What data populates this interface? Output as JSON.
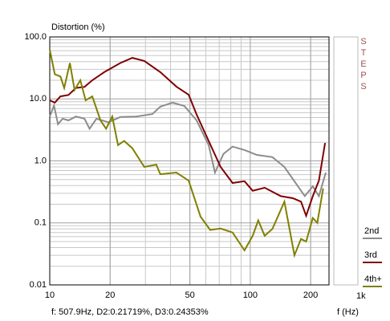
{
  "chart_data": {
    "type": "line",
    "title": "Distortion (%)",
    "x_label": "f (Hz)",
    "x_end_label": "1k",
    "side_label": "STEPS",
    "readout": "f: 507.9Hz,  D2:0.21719%,  D3:0.24353%",
    "log_x": true,
    "log_y": true,
    "grid": true,
    "xlim": [
      10,
      247
    ],
    "ylim": [
      0.01,
      100
    ],
    "xticks": [
      10,
      20,
      50,
      100,
      200
    ],
    "yticks": [
      {
        "value": 100,
        "label": "100.0"
      },
      {
        "value": 10,
        "label": "10.0"
      },
      {
        "value": 1,
        "label": "1.0"
      },
      0.1,
      0.01
    ],
    "series": [
      {
        "name": "2nd",
        "color": "#8c8c8c",
        "x": [
          10,
          10.5,
          11.0,
          11.6,
          12.4,
          13.5,
          14.9,
          15.8,
          17.1,
          19.6,
          22.5,
          27.0,
          32.5,
          35.6,
          40.9,
          46.9,
          54.0,
          62.0,
          66.7,
          73.5,
          81.6,
          93.6,
          107.8,
          129,
          148,
          170,
          187,
          205,
          220,
          238
        ],
        "values": [
          5.2,
          7.8,
          3.9,
          4.8,
          4.5,
          5.2,
          4.8,
          3.3,
          4.8,
          4.2,
          5.1,
          5.2,
          5.7,
          7.5,
          8.7,
          7.7,
          4.5,
          1.8,
          0.65,
          1.3,
          1.7,
          1.5,
          1.25,
          1.15,
          0.8,
          0.42,
          0.27,
          0.39,
          0.27,
          0.65
        ]
      },
      {
        "name": "3rd",
        "color": "#800000",
        "x": [
          10,
          10.6,
          11.3,
          12.4,
          13.5,
          14.9,
          16.3,
          18.7,
          22.5,
          25.8,
          29.6,
          35.6,
          42.8,
          49.3,
          54.0,
          62.0,
          71.1,
          81.6,
          93.6,
          102.8,
          118,
          142,
          163,
          179,
          190,
          205,
          220,
          236
        ],
        "values": [
          9.5,
          8.7,
          11,
          11.6,
          15,
          15.6,
          20,
          27,
          38,
          46,
          41,
          27,
          15.8,
          11.7,
          5.6,
          2.1,
          0.8,
          0.44,
          0.47,
          0.33,
          0.37,
          0.27,
          0.25,
          0.22,
          0.13,
          0.27,
          0.48,
          1.95
        ]
      },
      {
        "name": "4th+",
        "color": "#808000",
        "x": [
          10,
          10.6,
          11.3,
          11.8,
          12.6,
          13.3,
          14.2,
          15.1,
          16.3,
          17.9,
          19.1,
          20.5,
          21.9,
          23.5,
          25.8,
          29.6,
          34.0,
          35.6,
          42.8,
          49.3,
          56.5,
          63.1,
          71.1,
          81.6,
          93.6,
          102.8,
          109.6,
          118,
          129,
          148,
          155,
          166,
          179,
          190,
          205,
          216,
          231
        ],
        "values": [
          62,
          25,
          23,
          15,
          38,
          14,
          20,
          9.5,
          11,
          4.5,
          3.3,
          5.2,
          1.8,
          2.1,
          1.6,
          0.8,
          0.87,
          0.61,
          0.65,
          0.48,
          0.126,
          0.077,
          0.081,
          0.07,
          0.036,
          0.062,
          0.11,
          0.062,
          0.08,
          0.22,
          0.1,
          0.03,
          0.055,
          0.05,
          0.12,
          0.1,
          0.36
        ]
      }
    ]
  }
}
